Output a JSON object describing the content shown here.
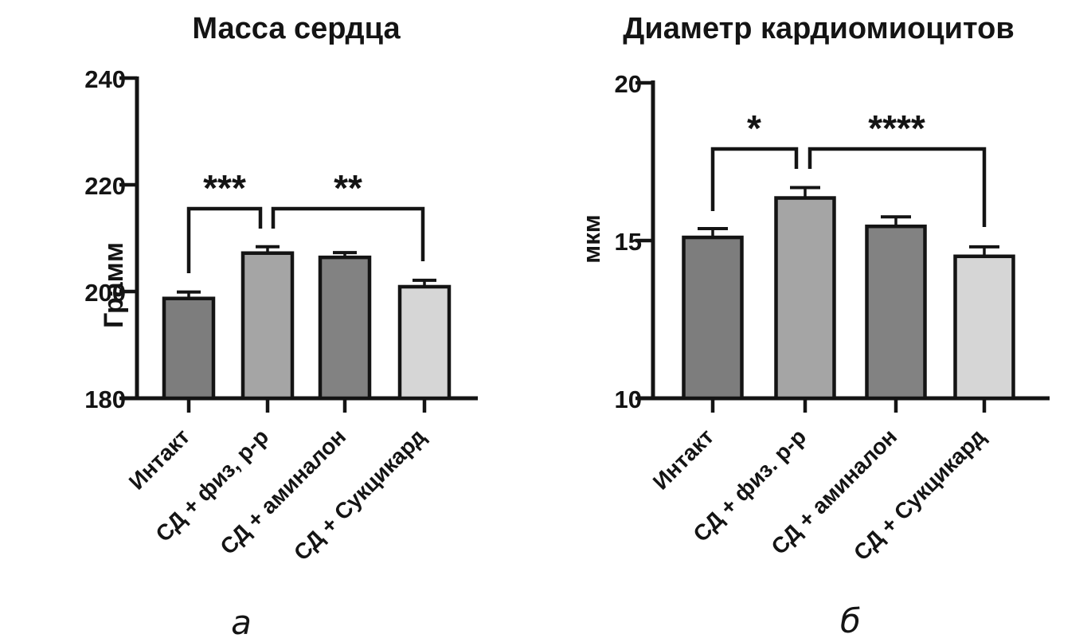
{
  "figure": {
    "panels": [
      {
        "label": "а"
      },
      {
        "label": "б"
      }
    ]
  },
  "chart_data": [
    {
      "type": "bar",
      "title": "Масса сердца",
      "ylabel": "Грамм",
      "xlabel": "",
      "categories": [
        "Интакт",
        "СД + физ, р-р",
        "СД + аминалон",
        "СД + Сукцикард"
      ],
      "values": [
        198.7,
        207.2,
        206.4,
        200.9
      ],
      "errors": [
        1.2,
        1.2,
        0.9,
        1.2
      ],
      "ylim": [
        180,
        240
      ],
      "yticks": [
        180,
        200,
        220,
        240
      ],
      "ytick_labels_top_down": [
        "240",
        "220",
        "200",
        "180"
      ],
      "bar_colors": [
        "#7d7d7d",
        "#a5a5a5",
        "#828282",
        "#d6d6d6"
      ],
      "bar_border_color": "#141414",
      "grid": "off",
      "legend": "none",
      "significance": [
        {
          "from": 0,
          "to": 1,
          "label": "***"
        },
        {
          "from": 1,
          "to": 3,
          "label": "**"
        }
      ],
      "panel_label": "а"
    },
    {
      "type": "bar",
      "title": "Диаметр кардиомиоцитов",
      "ylabel": "мкм",
      "xlabel": "",
      "categories": [
        "Интакт",
        "СД + физ. р-р",
        "СД + аминалон",
        "СД + Сукцикард"
      ],
      "values": [
        15.1,
        16.35,
        15.45,
        14.5
      ],
      "errors": [
        0.28,
        0.33,
        0.3,
        0.3
      ],
      "ylim": [
        10,
        20
      ],
      "yticks": [
        10,
        15,
        20
      ],
      "ytick_labels_top_down": [
        "20",
        "15",
        "10"
      ],
      "bar_colors": [
        "#7d7d7d",
        "#a5a5a5",
        "#828282",
        "#d6d6d6"
      ],
      "bar_border_color": "#141414",
      "grid": "off",
      "legend": "none",
      "significance": [
        {
          "from": 0,
          "to": 1,
          "label": "*"
        },
        {
          "from": 1,
          "to": 3,
          "label": "****"
        }
      ],
      "panel_label": "б"
    }
  ]
}
